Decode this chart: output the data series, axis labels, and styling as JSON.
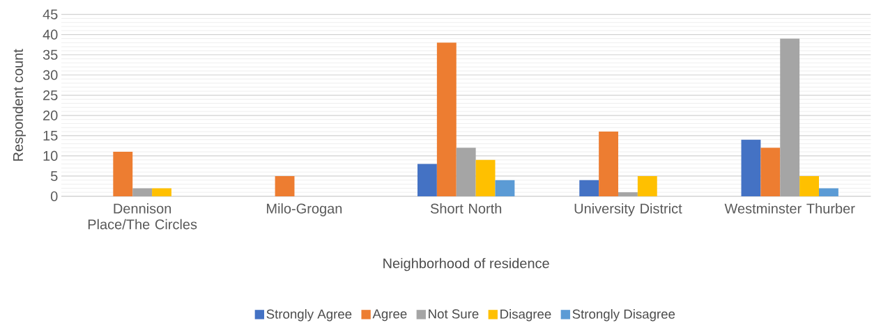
{
  "chart_data": {
    "type": "bar",
    "xlabel": "Neighborhood of residence",
    "ylabel": "Respondent count",
    "categories": [
      "Dennison Place/The Circles",
      "Milo-Grogan",
      "Short North",
      "University District",
      "Westminster Thurber"
    ],
    "series": [
      {
        "name": "Strongly Agree",
        "color": "#4472c4",
        "values": [
          null,
          null,
          8,
          4,
          14
        ]
      },
      {
        "name": "Agree",
        "color": "#ed7d31",
        "values": [
          11,
          5,
          38,
          16,
          12
        ]
      },
      {
        "name": "Not Sure",
        "color": "#a5a5a5",
        "values": [
          2,
          null,
          12,
          1,
          39
        ]
      },
      {
        "name": "Disagree",
        "color": "#ffc000",
        "values": [
          2,
          null,
          9,
          5,
          5
        ]
      },
      {
        "name": "Strongly Disagree",
        "color": "#5b9bd5",
        "values": [
          null,
          null,
          4,
          null,
          2
        ]
      }
    ],
    "ylim": [
      0,
      45
    ],
    "yticks": [
      0,
      5,
      10,
      15,
      20,
      25,
      30,
      35,
      40,
      45
    ],
    "grid": "y",
    "legend": "bottom"
  }
}
